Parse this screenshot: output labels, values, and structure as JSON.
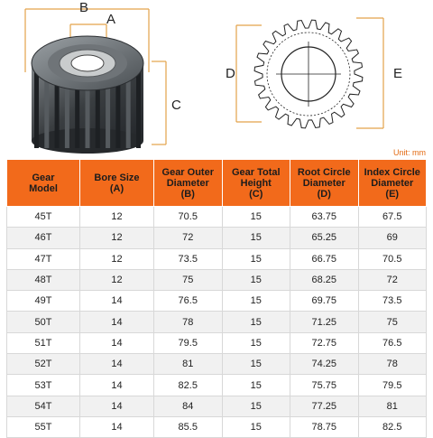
{
  "figure": {
    "labels": {
      "a": "A",
      "b": "B",
      "c": "C",
      "d": "D",
      "e": "E"
    },
    "unit": "Unit: mm",
    "colors": {
      "dimension_line": "#e3a24a",
      "gear_dark": "#2f3336",
      "gear_light": "#8c9296",
      "header_bg": "#f26a1b"
    }
  },
  "table": {
    "headers": [
      {
        "line1": "Gear",
        "line2": "Model",
        "line3": ""
      },
      {
        "line1": "Bore Size",
        "line2": "(A)",
        "line3": ""
      },
      {
        "line1": "Gear Outer",
        "line2": "Diameter",
        "line3": "(B)"
      },
      {
        "line1": "Gear Total",
        "line2": "Height",
        "line3": "(C)"
      },
      {
        "line1": "Root Circle",
        "line2": "Diameter",
        "line3": "(D)"
      },
      {
        "line1": "Index Circle",
        "line2": "Diameter",
        "line3": "(E)"
      }
    ],
    "rows": [
      [
        "45T",
        "12",
        "70.5",
        "15",
        "63.75",
        "67.5"
      ],
      [
        "46T",
        "12",
        "72",
        "15",
        "65.25",
        "69"
      ],
      [
        "47T",
        "12",
        "73.5",
        "15",
        "66.75",
        "70.5"
      ],
      [
        "48T",
        "12",
        "75",
        "15",
        "68.25",
        "72"
      ],
      [
        "49T",
        "14",
        "76.5",
        "15",
        "69.75",
        "73.5"
      ],
      [
        "50T",
        "14",
        "78",
        "15",
        "71.25",
        "75"
      ],
      [
        "51T",
        "14",
        "79.5",
        "15",
        "72.75",
        "76.5"
      ],
      [
        "52T",
        "14",
        "81",
        "15",
        "74.25",
        "78"
      ],
      [
        "53T",
        "14",
        "82.5",
        "15",
        "75.75",
        "79.5"
      ],
      [
        "54T",
        "14",
        "84",
        "15",
        "77.25",
        "81"
      ],
      [
        "55T",
        "14",
        "85.5",
        "15",
        "78.75",
        "82.5"
      ]
    ]
  }
}
